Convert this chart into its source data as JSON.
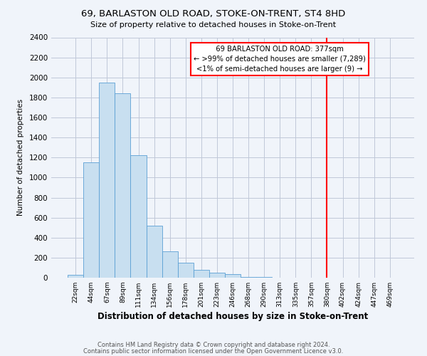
{
  "title": "69, BARLASTON OLD ROAD, STOKE-ON-TRENT, ST4 8HD",
  "subtitle": "Size of property relative to detached houses in Stoke-on-Trent",
  "xlabel": "Distribution of detached houses by size in Stoke-on-Trent",
  "ylabel": "Number of detached properties",
  "bin_labels": [
    "22sqm",
    "44sqm",
    "67sqm",
    "89sqm",
    "111sqm",
    "134sqm",
    "156sqm",
    "178sqm",
    "201sqm",
    "223sqm",
    "246sqm",
    "268sqm",
    "290sqm",
    "313sqm",
    "335sqm",
    "357sqm",
    "380sqm",
    "402sqm",
    "424sqm",
    "447sqm",
    "469sqm"
  ],
  "bar_heights": [
    30,
    1150,
    1950,
    1840,
    1220,
    520,
    265,
    148,
    80,
    50,
    38,
    5,
    5,
    3,
    0,
    0,
    0,
    0,
    0,
    0,
    0
  ],
  "bar_color": "#c8dff0",
  "bar_edge_color": "#5a9fd4",
  "vline_x_label": "380sqm",
  "vline_color": "red",
  "annotation_title": "69 BARLASTON OLD ROAD: 377sqm",
  "annotation_line1": "← >99% of detached houses are smaller (7,289)",
  "annotation_line2": "<1% of semi-detached houses are larger (9) →",
  "annotation_box_color": "white",
  "annotation_box_edge": "red",
  "footer1": "Contains HM Land Registry data © Crown copyright and database right 2024.",
  "footer2": "Contains public sector information licensed under the Open Government Licence v3.0.",
  "ylim": [
    0,
    2400
  ],
  "yticks": [
    0,
    200,
    400,
    600,
    800,
    1000,
    1200,
    1400,
    1600,
    1800,
    2000,
    2200,
    2400
  ],
  "background_color": "#f0f4fa",
  "grid_color": "#c0c8d8"
}
